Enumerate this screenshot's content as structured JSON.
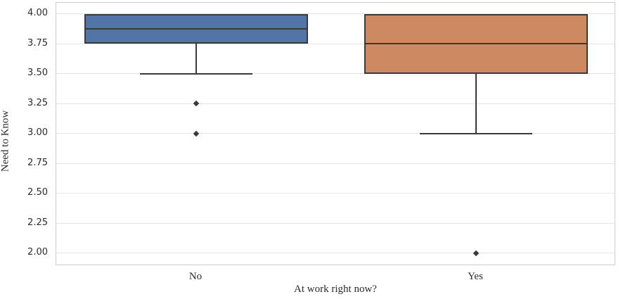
{
  "chart_data": {
    "type": "box",
    "title": "",
    "xlabel": "At work right now?",
    "ylabel": "Need to Know",
    "categories": [
      "No",
      "Yes"
    ],
    "ylim": [
      1.894,
      4.094
    ],
    "yticks": [
      4.0,
      3.75,
      3.5,
      3.25,
      3.0,
      2.75,
      2.5,
      2.25,
      2.0
    ],
    "ytick_labels": [
      "4.00",
      "3.75",
      "3.50",
      "3.25",
      "3.00",
      "2.75",
      "2.50",
      "2.25",
      "2.00"
    ],
    "grid": "horizontal",
    "legend": "none",
    "boxes": [
      {
        "category": "No",
        "whisker_low": 3.5,
        "q1": 3.75,
        "median": 3.875,
        "q3": 4.0,
        "whisker_high": 4.0,
        "outliers": [
          3.25,
          3.0
        ],
        "fill_color": "#5274a8"
      },
      {
        "category": "Yes",
        "whisker_low": 3.0,
        "q1": 3.5,
        "median": 3.75,
        "q3": 4.0,
        "whisker_high": 4.0,
        "outliers": [
          2.0
        ],
        "fill_color": "#cd8a60"
      }
    ],
    "colors": {
      "edge": "#3a3a3a",
      "grid": "#e4e4e4",
      "spine": "#cccccc",
      "background": "#ffffff",
      "tick_text": "#2b2b2b"
    }
  }
}
